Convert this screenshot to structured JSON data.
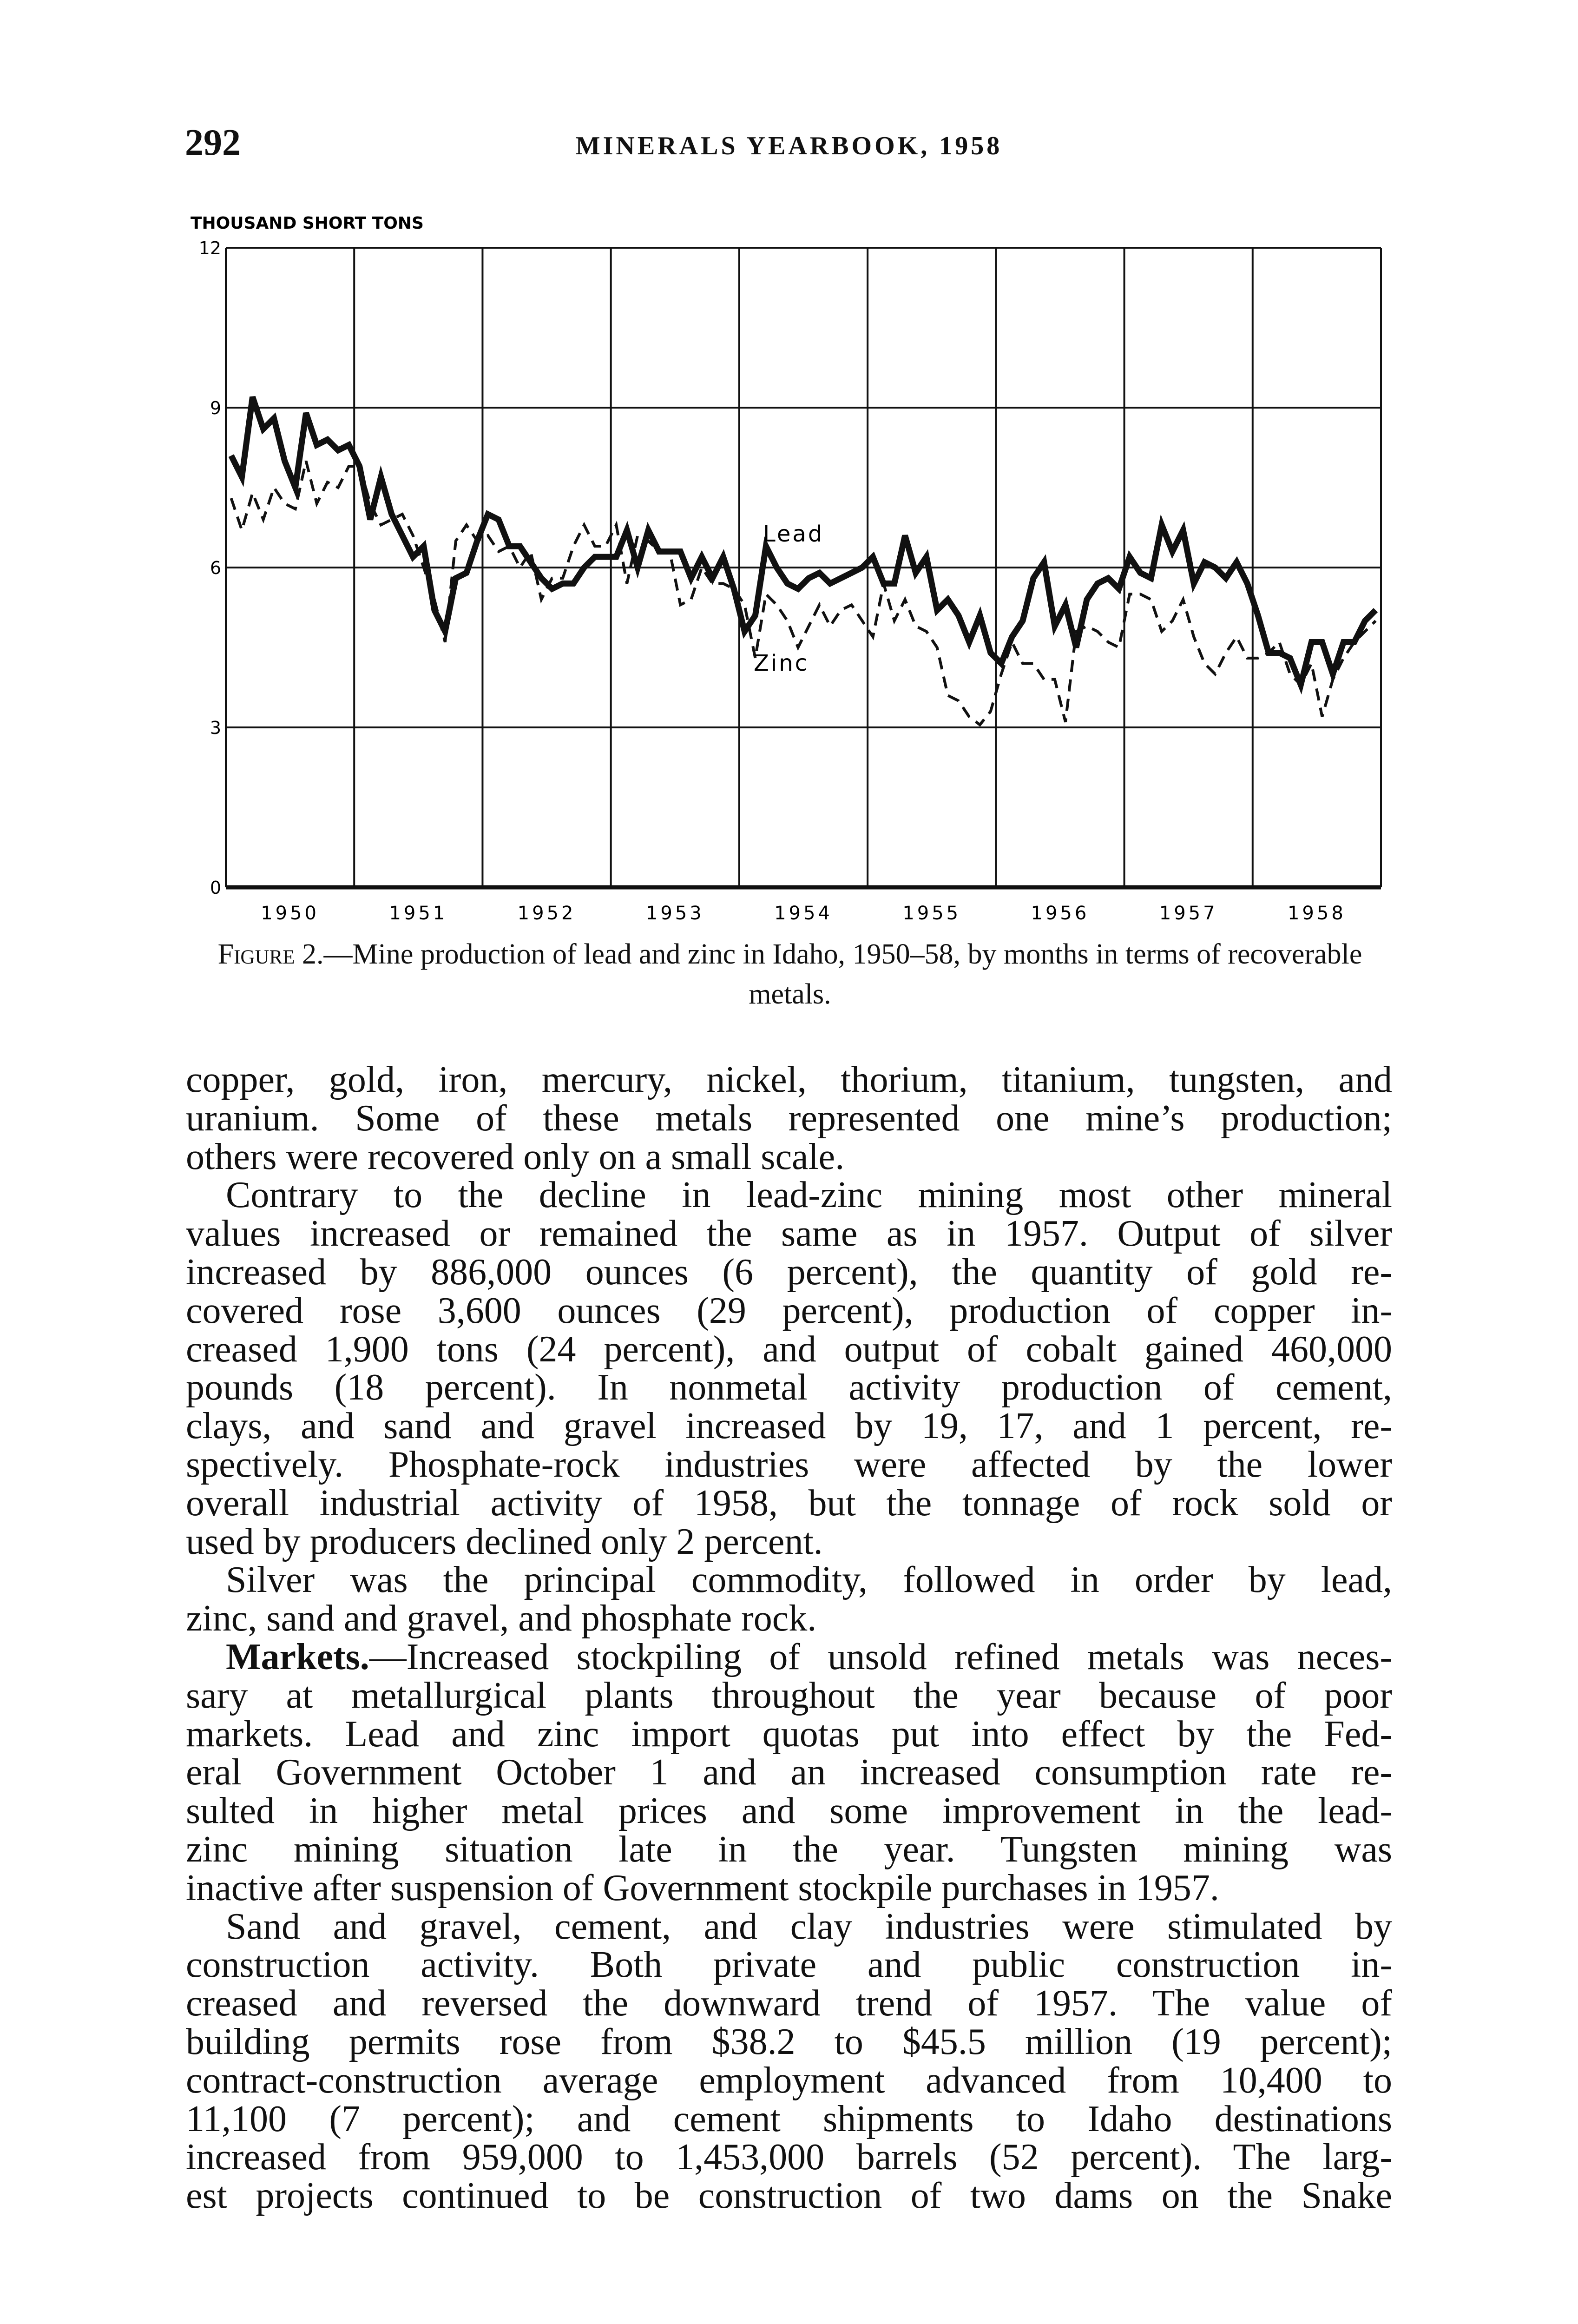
{
  "header": {
    "page_number": "292",
    "running_title": "MINERALS YEARBOOK, 1958"
  },
  "chart_data": {
    "type": "line",
    "ylabel": "THOUSAND SHORT TONS",
    "ylim": [
      0,
      12
    ],
    "yticks": [
      "0",
      "3",
      "6",
      "9",
      "12"
    ],
    "x_tick_labels": [
      "1950",
      "1951",
      "1952",
      "1953",
      "1954",
      "1955",
      "1956",
      "1957",
      "1958"
    ],
    "grid": true,
    "series": [
      {
        "name": "Lead",
        "style": "solid-heavy",
        "values": [
          8.1,
          7.7,
          9.2,
          8.6,
          8.8,
          8.0,
          7.5,
          8.9,
          8.3,
          8.4,
          8.2,
          8.3,
          7.9,
          6.9,
          7.7,
          7.0,
          6.6,
          6.2,
          6.4,
          5.2,
          4.8,
          5.8,
          5.9,
          6.5,
          7.0,
          6.9,
          6.4,
          6.4,
          6.1,
          5.8,
          5.6,
          5.7,
          5.7,
          6.0,
          6.2,
          6.2,
          6.2,
          6.7,
          6.0,
          6.7,
          6.3,
          6.3,
          6.3,
          5.8,
          6.2,
          5.8,
          6.2,
          5.6,
          4.8,
          5.1,
          6.4,
          6.0,
          5.7,
          5.6,
          5.8,
          5.9,
          5.7,
          5.8,
          5.9,
          6.0,
          6.2,
          5.7,
          5.7,
          6.6,
          5.9,
          6.2,
          5.2,
          5.4,
          5.1,
          4.6,
          5.1,
          4.4,
          4.2,
          4.7,
          5.0,
          5.8,
          6.1,
          4.9,
          5.3,
          4.5,
          5.4,
          5.7,
          5.8,
          5.6,
          6.2,
          5.9,
          5.8,
          6.8,
          6.3,
          6.7,
          5.7,
          6.1,
          6.0,
          5.8,
          6.1,
          5.7,
          5.1,
          4.4,
          4.4,
          4.3,
          3.8,
          4.6,
          4.6,
          4.0,
          4.6,
          4.6,
          5.0,
          5.2
        ]
      },
      {
        "name": "Zinc",
        "style": "dashed",
        "values": [
          7.3,
          6.7,
          7.4,
          6.9,
          7.5,
          7.2,
          7.1,
          8.0,
          7.2,
          7.6,
          7.5,
          7.9,
          7.9,
          7.2,
          6.8,
          6.9,
          7.0,
          6.6,
          6.0,
          5.4,
          4.6,
          6.5,
          6.8,
          6.5,
          6.6,
          6.3,
          6.4,
          6.0,
          6.3,
          5.4,
          5.8,
          5.8,
          6.4,
          6.8,
          6.4,
          6.4,
          6.8,
          5.7,
          6.6,
          6.5,
          6.3,
          6.3,
          5.3,
          5.4,
          6.0,
          5.7,
          5.7,
          5.6,
          5.3,
          4.3,
          5.5,
          5.3,
          5.0,
          4.5,
          4.9,
          5.3,
          4.9,
          5.2,
          5.3,
          5.0,
          4.7,
          5.7,
          5.0,
          5.4,
          4.9,
          4.8,
          4.5,
          3.6,
          3.5,
          3.2,
          3.05,
          3.3,
          4.0,
          4.6,
          4.2,
          4.2,
          3.9,
          3.9,
          3.1,
          4.8,
          4.9,
          4.8,
          4.6,
          4.5,
          5.5,
          5.5,
          5.4,
          4.8,
          5.0,
          5.4,
          4.7,
          4.2,
          4.0,
          4.4,
          4.7,
          4.3,
          4.3,
          4.4,
          4.6,
          4.0,
          3.8,
          4.2,
          3.2,
          3.9,
          4.3,
          4.6,
          4.8,
          5.0
        ]
      }
    ]
  },
  "caption": {
    "figure_label": "Figure 2.",
    "text": "—Mine production of lead and zinc in Idaho, 1950–58, by months in terms of recoverable metals."
  },
  "body": {
    "paragraphs": [
      {
        "lines": [
          "copper, gold, iron, mercury, nickel, thorium, titanium, tungsten, and",
          "uranium. Some of these metals represented one mine’s production;",
          "others were recovered only on a small scale."
        ]
      },
      {
        "lines": [
          "Contrary to the decline in lead-zinc mining most other mineral",
          "values increased or remained the same as in 1957. Output of silver",
          "increased by 886,000 ounces (6 percent), the quantity of gold re-",
          "covered rose 3,600 ounces (29 percent), production of copper in-",
          "creased 1,900 tons (24 percent), and output of cobalt gained 460,000",
          "pounds (18 percent). In nonmetal activity production of cement,",
          "clays, and sand and gravel increased by 19, 17, and 1 percent, re-",
          "spectively. Phosphate-rock industries were affected by the lower",
          "overall industrial activity of 1958, but the tonnage of rock sold or",
          "used by producers declined only 2 percent."
        ]
      },
      {
        "lines": [
          "Silver was the principal commodity, followed in order by lead,",
          "zinc, sand and gravel, and phosphate rock."
        ]
      },
      {
        "run_in_heading": "Markets.",
        "lines": [
          "—Increased stockpiling of unsold refined metals was neces-",
          "sary at metallurgical plants throughout the year because of poor",
          "markets. Lead and zinc import quotas put into effect by the Fed-",
          "eral Government October 1 and an increased consumption rate re-",
          "sulted in higher metal prices and some improvement in the lead-",
          "zinc mining situation late in the year. Tungsten mining was",
          "inactive after suspension of Government stockpile purchases in 1957."
        ]
      },
      {
        "lines": [
          "Sand and gravel, cement, and clay industries were stimulated by",
          "construction activity. Both private and public construction in-",
          "creased and reversed the downward trend of 1957. The value of",
          "building permits rose from $38.2 to $45.5 million (19 percent);",
          "contract-construction average employment advanced from 10,400 to",
          "11,100 (7 percent); and cement shipments to Idaho destinations",
          "increased from 959,000 to 1,453,000 barrels (52 percent). The larg-",
          "est projects continued to be construction of two dams on the Snake"
        ],
        "continues": true
      }
    ]
  }
}
